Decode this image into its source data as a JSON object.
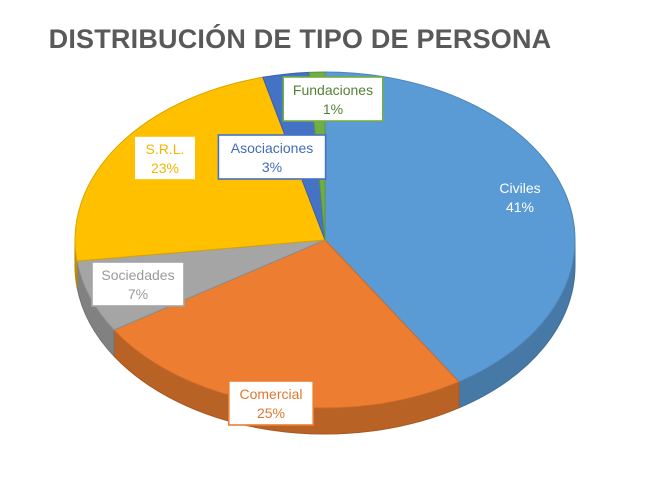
{
  "chart_data": {
    "type": "pie",
    "title": "DISTRIBUCIÓN DE TIPO DE PERSONA",
    "slices": [
      {
        "label": "Civiles",
        "value": 41,
        "value_label": "41%",
        "color": "#5B9BD5"
      },
      {
        "label": "Comercial",
        "value": 25,
        "value_label": "25%",
        "color": "#ED7D31"
      },
      {
        "label": "Sociedades",
        "value": 7,
        "value_label": "7%",
        "color": "#A5A5A5"
      },
      {
        "label": "S.R.L.",
        "value": 23,
        "value_label": "23%",
        "color": "#FFC000"
      },
      {
        "label": "Asociaciones",
        "value": 3,
        "value_label": "3%",
        "color": "#4472C4"
      },
      {
        "label": "Fundaciones",
        "value": 1,
        "value_label": "1%",
        "color": "#70AD47"
      }
    ],
    "style": "3d-pie",
    "data_labels": "callout-boxes",
    "legend": "none"
  }
}
